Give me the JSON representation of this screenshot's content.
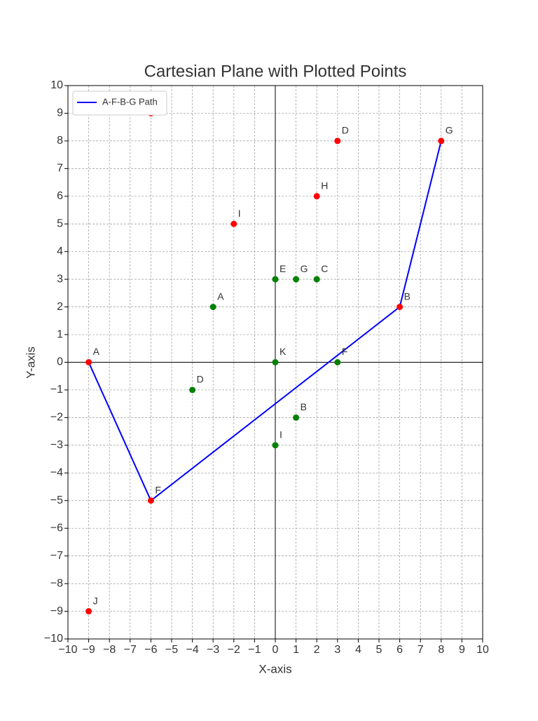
{
  "chart_data": {
    "type": "scatter",
    "title": "Cartesian Plane with Plotted Points",
    "x_label": "X-axis",
    "y_label": "Y-axis",
    "xlim": [
      -10,
      10
    ],
    "ylim": [
      -10,
      10
    ],
    "xticks": [
      {
        "value": -10,
        "label": "−10"
      },
      {
        "value": -9,
        "label": "−9"
      },
      {
        "value": -8,
        "label": "−8"
      },
      {
        "value": -7,
        "label": "−7"
      },
      {
        "value": -6,
        "label": "−6"
      },
      {
        "value": -5,
        "label": "−5"
      },
      {
        "value": -4,
        "label": "−4"
      },
      {
        "value": -3,
        "label": "−3"
      },
      {
        "value": -2,
        "label": "−2"
      },
      {
        "value": -1,
        "label": "−1"
      },
      0,
      1,
      2,
      3,
      4,
      5,
      6,
      7,
      8,
      9,
      10
    ],
    "yticks": [
      {
        "value": -10,
        "label": "−10"
      },
      {
        "value": -9,
        "label": "−9"
      },
      {
        "value": -8,
        "label": "−8"
      },
      {
        "value": -7,
        "label": "−7"
      },
      {
        "value": -6,
        "label": "−6"
      },
      {
        "value": -5,
        "label": "−5"
      },
      {
        "value": -4,
        "label": "−4"
      },
      {
        "value": -3,
        "label": "−3"
      },
      {
        "value": -2,
        "label": "−2"
      },
      {
        "value": -1,
        "label": "−1"
      },
      0,
      1,
      2,
      3,
      4,
      5,
      6,
      7,
      8,
      9,
      10
    ],
    "grid": true,
    "legend": "upper left",
    "series": [
      {
        "name": "A-F-B-G Path",
        "type": "line",
        "color": "#0000ff",
        "x": [
          -9,
          -6,
          6,
          8
        ],
        "y": [
          0,
          -5,
          2,
          8
        ]
      },
      {
        "type": "points",
        "color": "#ff0000",
        "x": [
          -9,
          -6,
          6,
          8,
          3,
          2,
          -2,
          -9,
          -6
        ],
        "y": [
          0,
          -5,
          2,
          8,
          8,
          6,
          5,
          -9,
          9
        ],
        "labels": [
          "A",
          "F",
          "B",
          "G",
          "D",
          "H",
          "I",
          "J",
          null
        ]
      },
      {
        "type": "points",
        "color": "#008000",
        "x": [
          -3,
          0,
          1,
          2,
          0,
          3,
          -4,
          1,
          0
        ],
        "y": [
          2,
          3,
          3,
          3,
          0,
          0,
          -1,
          -2,
          -3
        ],
        "labels": [
          "A",
          "E",
          "G",
          "C",
          "K",
          "F",
          "D",
          "B",
          "I"
        ]
      }
    ]
  }
}
